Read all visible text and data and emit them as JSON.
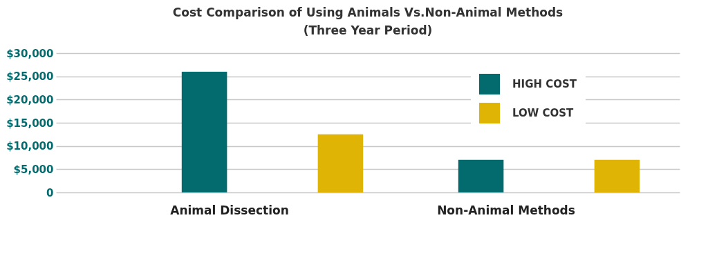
{
  "chart_data": {
    "type": "bar",
    "title": [
      "Cost Comparison of Using Animals Vs.Non-Animal Methods",
      "(Three Year Period)"
    ],
    "categories": [
      "Animal Dissection",
      "Non-Animal Methods"
    ],
    "series": [
      {
        "name": "HIGH COST",
        "color": "#036b6e",
        "values": [
          26000,
          7000
        ]
      },
      {
        "name": "LOW COST",
        "color": "#dfb404",
        "values": [
          12500,
          7000
        ]
      }
    ],
    "ylim": [
      0,
      30000
    ],
    "yticks": [
      {
        "value": 0,
        "label": "0"
      },
      {
        "value": 5000,
        "label": "$5,000"
      },
      {
        "value": 10000,
        "label": "$10,000"
      },
      {
        "value": 15000,
        "label": "$15,000"
      },
      {
        "value": 20000,
        "label": "$20,000"
      },
      {
        "value": 25000,
        "label": "$25,000"
      },
      {
        "value": 30000,
        "label": "$30,000"
      }
    ],
    "grid": "y",
    "legend": "top right"
  }
}
